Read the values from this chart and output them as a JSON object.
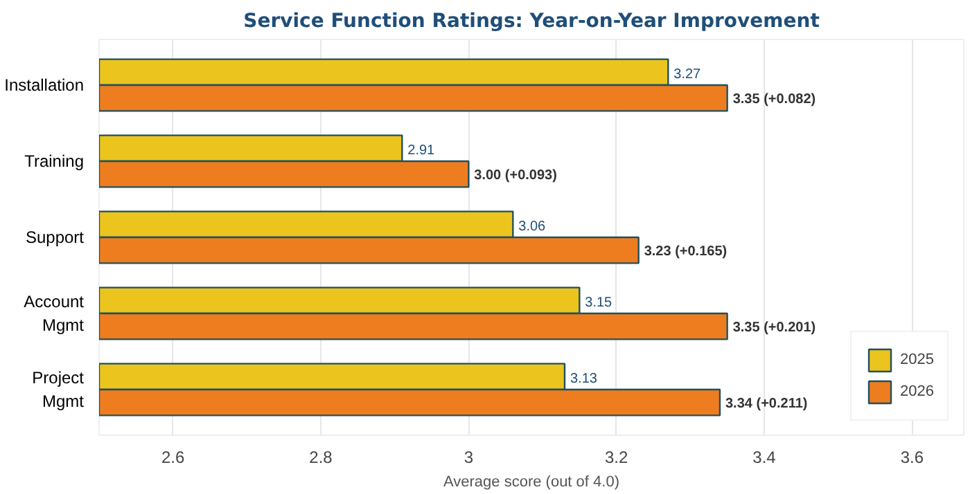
{
  "chart_data": {
    "type": "bar",
    "orientation": "horizontal",
    "title": "Service Function Ratings: Year-on-Year Improvement",
    "xlabel": "Average score (out of 4.0)",
    "categories": [
      "Installation",
      "Training",
      "Support",
      "Account\nMgmt",
      "Project\nMgmt"
    ],
    "series": [
      {
        "name": "2025",
        "color": "#ecc41e",
        "values": [
          3.27,
          2.91,
          3.06,
          3.15,
          3.13
        ],
        "value_labels": [
          "3.27",
          "2.91",
          "3.06",
          "3.15",
          "3.13"
        ]
      },
      {
        "name": "2026",
        "color": "#ee7d1f",
        "values": [
          3.35,
          3.0,
          3.23,
          3.35,
          3.34
        ],
        "value_labels": [
          "3.35  (+0.082)",
          "3.00  (+0.093)",
          "3.23  (+0.165)",
          "3.35  (+0.201)",
          "3.34  (+0.211)"
        ]
      }
    ],
    "xlim": [
      2.5,
      3.67
    ],
    "xticks": [
      2.6,
      2.8,
      3.0,
      3.2,
      3.4,
      3.6
    ],
    "grid": "x",
    "legend": "bottom right"
  }
}
